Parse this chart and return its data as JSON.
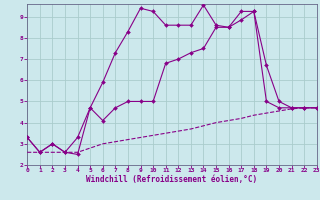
{
  "xlabel": "Windchill (Refroidissement éolien,°C)",
  "bg_color": "#cce8ec",
  "grid_color": "#aacccc",
  "line_color": "#880088",
  "xlim": [
    0,
    23
  ],
  "ylim": [
    2,
    9.6
  ],
  "xticks": [
    0,
    1,
    2,
    3,
    4,
    5,
    6,
    7,
    8,
    9,
    10,
    11,
    12,
    13,
    14,
    15,
    16,
    17,
    18,
    19,
    20,
    21,
    22,
    23
  ],
  "yticks": [
    2,
    3,
    4,
    5,
    6,
    7,
    8,
    9
  ],
  "line1_x": [
    0,
    1,
    2,
    3,
    4,
    5,
    6,
    7,
    8,
    9,
    10,
    11,
    12,
    13,
    14,
    15,
    16,
    17,
    18,
    19,
    20,
    21,
    22,
    23
  ],
  "line1_y": [
    3.3,
    2.6,
    3.0,
    2.6,
    2.5,
    4.7,
    5.9,
    7.3,
    8.3,
    9.4,
    9.25,
    8.6,
    8.6,
    8.6,
    9.55,
    8.6,
    8.5,
    9.25,
    9.25,
    5.0,
    4.7,
    4.7,
    4.7,
    4.7
  ],
  "line2_x": [
    0,
    1,
    2,
    3,
    4,
    5,
    6,
    7,
    8,
    9,
    10,
    11,
    12,
    13,
    14,
    15,
    16,
    17,
    18,
    19,
    20,
    21,
    22,
    23
  ],
  "line2_y": [
    3.3,
    2.6,
    3.0,
    2.6,
    3.3,
    4.7,
    4.1,
    4.7,
    5.0,
    5.0,
    5.0,
    6.8,
    7.0,
    7.3,
    7.5,
    8.5,
    8.5,
    8.85,
    9.25,
    6.7,
    5.0,
    4.7,
    4.7,
    4.7
  ],
  "line3_x": [
    0,
    1,
    2,
    3,
    4,
    5,
    6,
    7,
    8,
    9,
    10,
    11,
    12,
    13,
    14,
    15,
    16,
    17,
    18,
    19,
    20,
    21,
    22,
    23
  ],
  "line3_y": [
    2.6,
    2.6,
    2.6,
    2.6,
    2.6,
    2.8,
    3.0,
    3.1,
    3.2,
    3.3,
    3.4,
    3.5,
    3.6,
    3.7,
    3.85,
    4.0,
    4.1,
    4.2,
    4.35,
    4.45,
    4.55,
    4.65,
    4.7,
    4.7
  ]
}
